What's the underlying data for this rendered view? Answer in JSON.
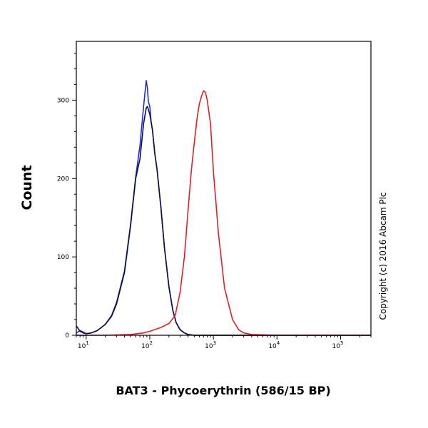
{
  "chart_data": {
    "type": "line",
    "title": "",
    "xlabel": "BAT3 - Phycoerythrin (586/15 BP)",
    "ylabel": "Count",
    "x_scale": "log",
    "xlim": [
      7,
      300000
    ],
    "ylim": [
      0,
      375
    ],
    "y_ticks": [
      0,
      100,
      200,
      300
    ],
    "x_ticks": [
      {
        "value": 10,
        "base": "10",
        "exp": "1"
      },
      {
        "value": 100,
        "base": "10",
        "exp": "2"
      },
      {
        "value": 1000,
        "base": "10",
        "exp": "3"
      },
      {
        "value": 10000,
        "base": "10",
        "exp": "4"
      },
      {
        "value": 100000,
        "base": "10",
        "exp": "5"
      }
    ],
    "grid": false,
    "annotation": "Copyright (c) 2016 Abcam Plc",
    "series": [
      {
        "color": "#1a2ee0",
        "x": [
          7,
          8,
          9,
          10,
          12,
          15,
          20,
          25,
          30,
          40,
          50,
          60,
          70,
          80,
          88,
          92,
          95,
          100,
          105,
          110,
          120,
          130,
          150,
          170,
          200,
          230,
          260,
          300,
          350,
          400,
          500,
          700,
          1000,
          10000,
          300000
        ],
        "y": [
          3,
          6,
          4,
          2,
          3,
          6,
          14,
          25,
          42,
          82,
          142,
          202,
          242,
          292,
          325,
          315,
          298,
          292,
          272,
          262,
          232,
          212,
          162,
          112,
          62,
          32,
          16,
          7,
          3,
          1,
          0,
          0,
          0,
          0,
          0
        ]
      },
      {
        "color": "#101040",
        "x": [
          7,
          8,
          9,
          10,
          12,
          15,
          20,
          25,
          30,
          40,
          50,
          60,
          70,
          80,
          88,
          92,
          95,
          100,
          105,
          110,
          120,
          130,
          150,
          170,
          200,
          230,
          260,
          300,
          350,
          400,
          500,
          700,
          1000,
          10000,
          300000
        ],
        "y": [
          12,
          5,
          3,
          2,
          3,
          6,
          14,
          24,
          40,
          80,
          140,
          200,
          225,
          270,
          290,
          292,
          288,
          282,
          272,
          262,
          232,
          212,
          162,
          112,
          62,
          32,
          16,
          7,
          3,
          1,
          0,
          0,
          0,
          0,
          0
        ]
      },
      {
        "color": "#e02020",
        "x": [
          7,
          20,
          50,
          80,
          100,
          150,
          200,
          250,
          300,
          350,
          400,
          450,
          500,
          550,
          600,
          650,
          700,
          750,
          800,
          900,
          1000,
          1200,
          1500,
          2000,
          2500,
          3000,
          4000,
          10000,
          300000
        ],
        "y": [
          0,
          0,
          1,
          3,
          5,
          10,
          15,
          25,
          55,
          100,
          160,
          210,
          245,
          275,
          295,
          305,
          312,
          310,
          300,
          270,
          210,
          130,
          60,
          20,
          7,
          3,
          1,
          0,
          0
        ]
      }
    ]
  }
}
